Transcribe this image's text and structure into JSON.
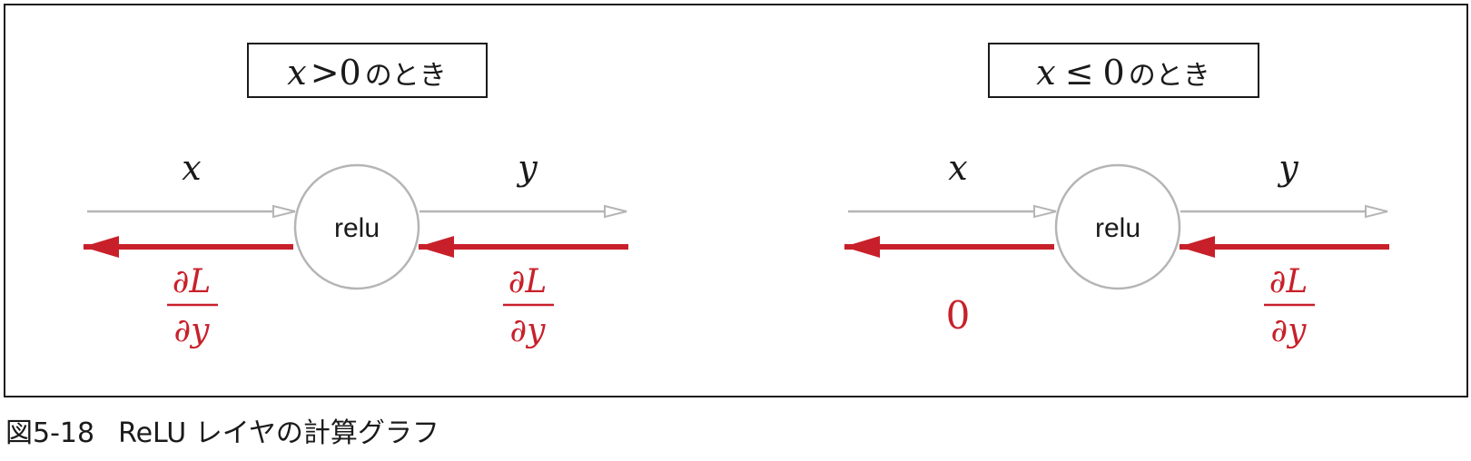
{
  "colors": {
    "forward": "#b5b5b5",
    "backward": "#c8202a",
    "frame": "#1a1a1a",
    "text": "#1a1a1a"
  },
  "left_panel": {
    "condition_var": "x",
    "condition_op": ">",
    "condition_val": "0",
    "condition_suffix": "のとき",
    "input_label": "x",
    "output_label": "y",
    "node_label": "relu",
    "upstream_grad": {
      "partial1": "∂",
      "num": "L",
      "partial2": "∂",
      "den": "y"
    },
    "downstream_grad": {
      "partial1": "∂",
      "num": "L",
      "partial2": "∂",
      "den": "y"
    }
  },
  "right_panel": {
    "condition_var": "x",
    "condition_op": "≤",
    "condition_val": "0",
    "condition_suffix": "のとき",
    "input_label": "x",
    "output_label": "y",
    "node_label": "relu",
    "upstream_grad": {
      "partial1": "∂",
      "num": "L",
      "partial2": "∂",
      "den": "y"
    },
    "downstream_grad_value": "0"
  },
  "caption": {
    "number": "図5-18",
    "title": "ReLU レイヤの計算グラフ"
  }
}
